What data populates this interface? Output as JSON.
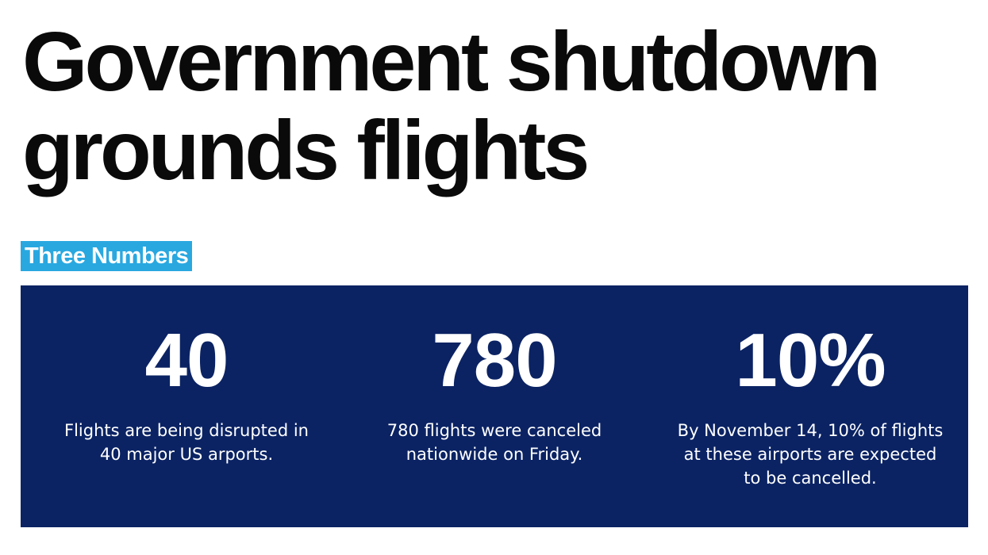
{
  "headline": {
    "line1": "Government shutdown",
    "line2": "grounds flights"
  },
  "section_tag": "Three Numbers",
  "colors": {
    "tag_background": "#29a8e0",
    "panel_background": "#0b2363",
    "headline_text": "#0a0a0a",
    "panel_text": "#ffffff"
  },
  "stats": [
    {
      "value": "40",
      "description": "Flights are being disrupted in 40 major US arports."
    },
    {
      "value": "780",
      "description": "780 flights were canceled nationwide on Friday."
    },
    {
      "value": "10%",
      "description": "By November 14, 10% of flights at these airports are expected to be cancelled."
    }
  ]
}
